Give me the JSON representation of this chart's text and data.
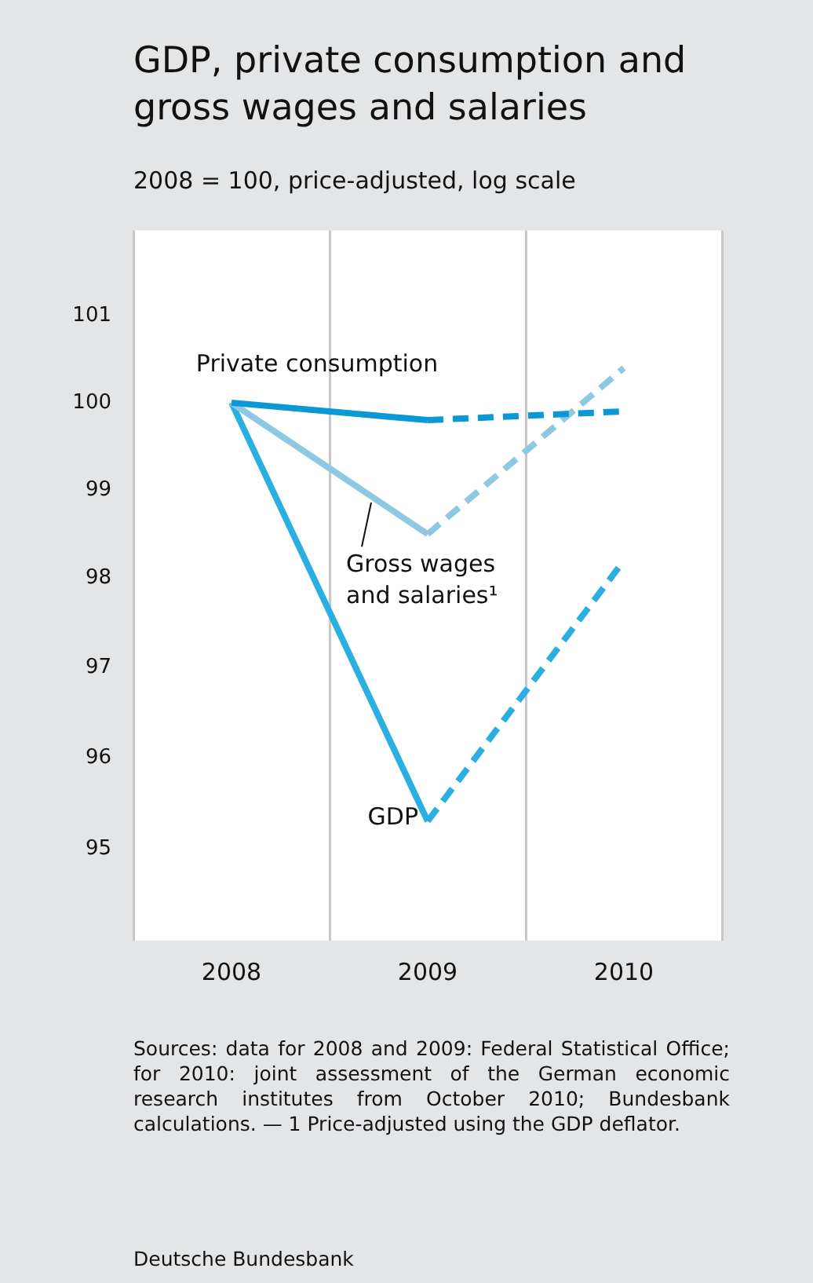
{
  "chart_data": {
    "type": "line",
    "title": "GDP, private consumption and gross wages and salaries",
    "subtitle": "2008 = 100, price-adjusted, log scale",
    "categories": [
      "2008",
      "2009",
      "2010"
    ],
    "series": [
      {
        "name": "Private consumption",
        "color": "#0b98d4",
        "values": [
          100,
          99.8,
          99.9
        ],
        "line_style": [
          "solid",
          "dashed"
        ]
      },
      {
        "name": "Gross wages and salaries¹",
        "color": "#8ec8e2",
        "values": [
          100,
          98.5,
          100.4
        ],
        "line_style": [
          "solid",
          "dashed"
        ]
      },
      {
        "name": "GDP",
        "color": "#2bafe0",
        "values": [
          100,
          95.3,
          98.2
        ],
        "line_style": [
          "solid",
          "dashed"
        ]
      }
    ],
    "log": true,
    "ylim": [
      94,
      102
    ],
    "yticks": [
      95,
      96,
      97,
      98,
      99,
      100,
      101
    ],
    "grid": "x",
    "marker": "none",
    "annotations": [
      "Sources: data for 2008 and 2009: Federal Statistical Office; for 2010: joint assessment of the German economic research institutes from October 2010; Bundesbank calculations. — 1 Price-adjusted using the GDP deflator.",
      "Deutsche Bundesbank"
    ]
  }
}
